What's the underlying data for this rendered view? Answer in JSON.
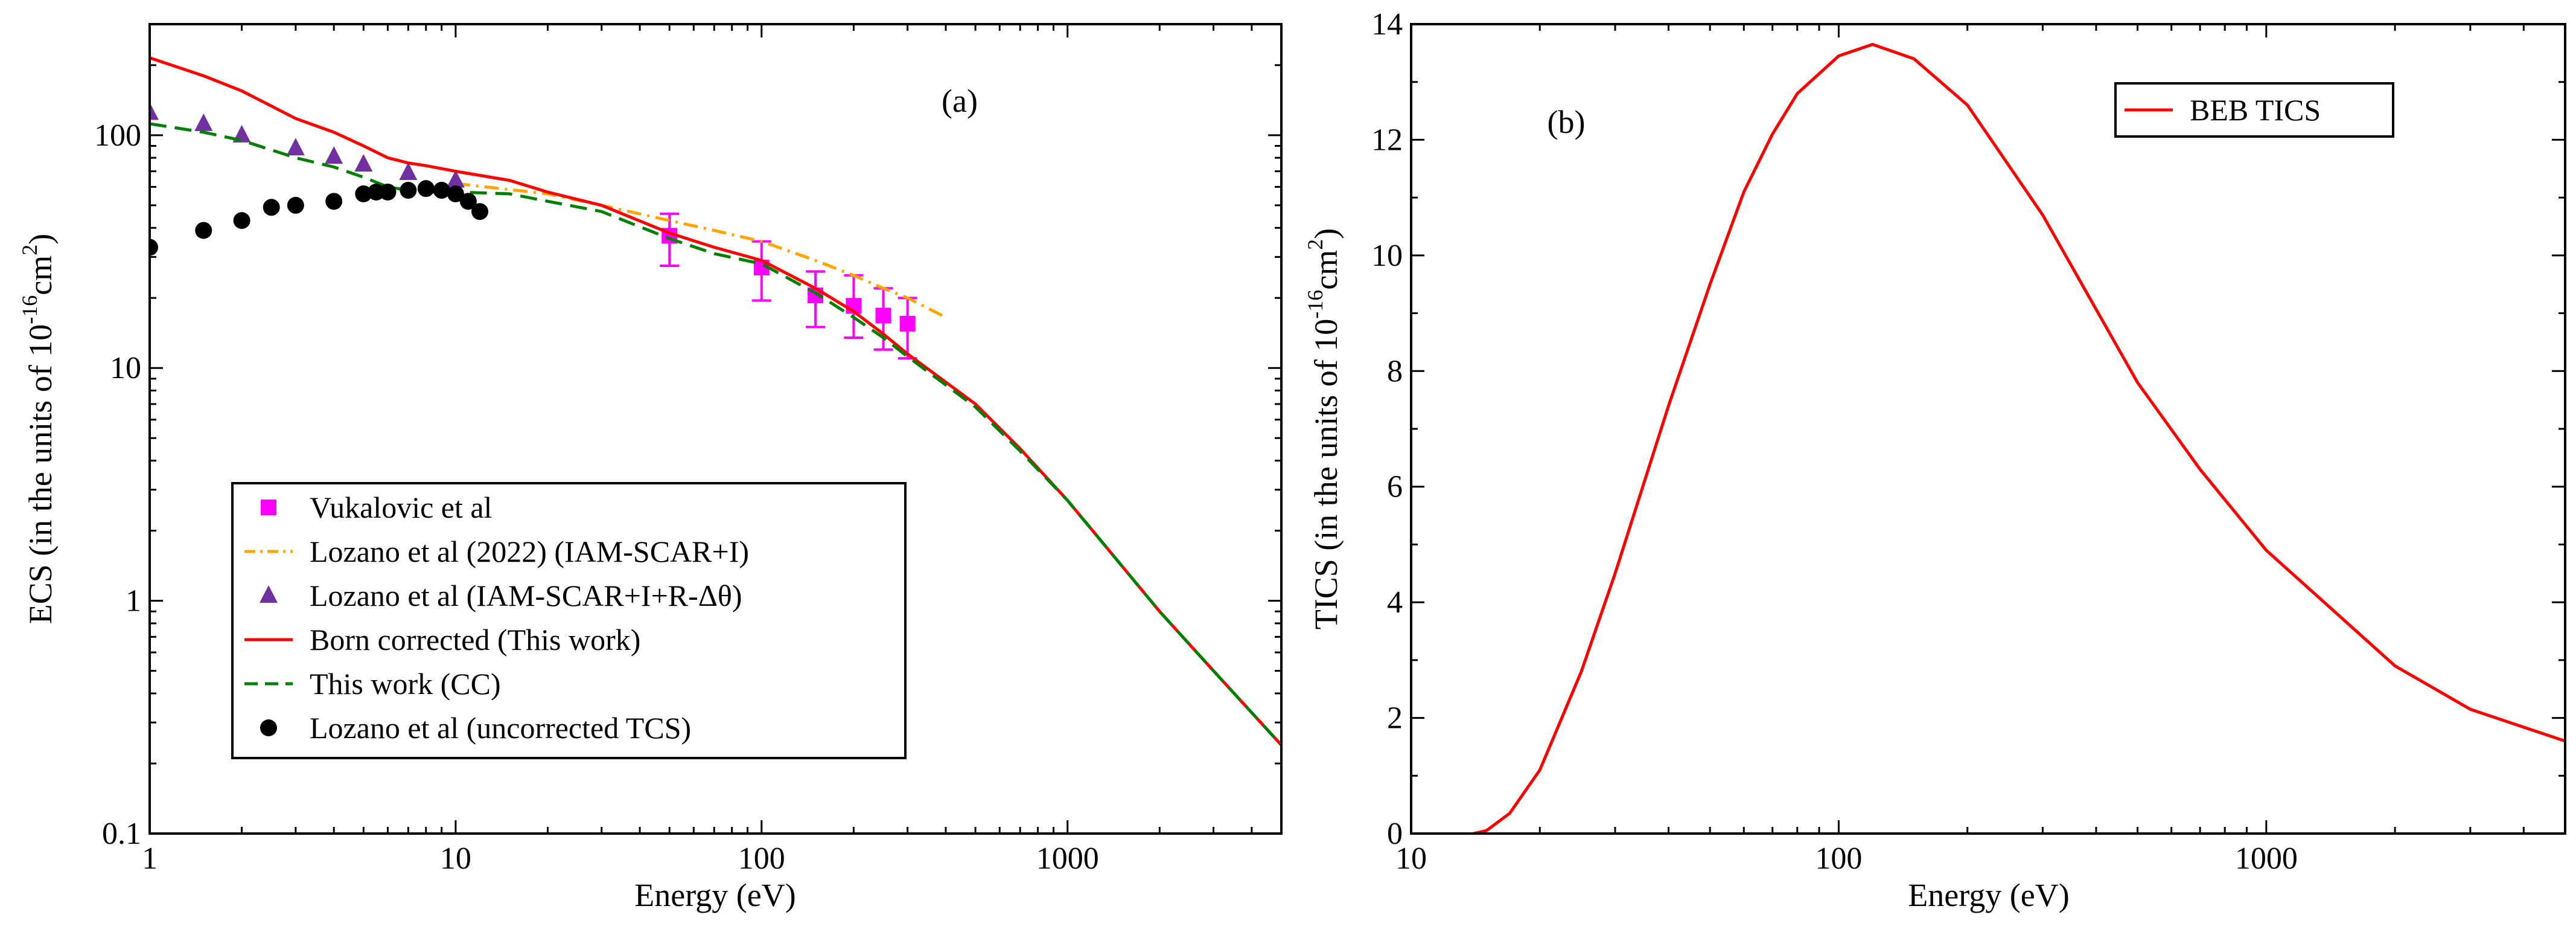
{
  "chart_data": [
    {
      "type": "line",
      "panel_label": "(a)",
      "xscale": "log",
      "yscale": "log",
      "xlabel": "Energy (eV)",
      "ylabel": "ECS (in the units of 10",
      "ylabel_exp": "-16",
      "ylabel_unit": "cm",
      "ylabel_unit_exp": "2",
      "ylabel_close": ")",
      "xlim": [
        1,
        5000
      ],
      "ylim": [
        0.1,
        300
      ],
      "xticks": [
        1,
        10,
        100,
        1000
      ],
      "xtick_labels": [
        "1",
        "10",
        "100",
        "1000"
      ],
      "yticks": [
        0.1,
        1,
        10,
        100
      ],
      "ytick_labels": [
        "0.1",
        "1",
        "10",
        "100"
      ],
      "legend_position": "lower-left",
      "series": [
        {
          "name": "Vukalovic et al",
          "style": "markers-square",
          "color": "#ff00ff",
          "x": [
            50,
            100,
            150,
            200,
            250,
            300
          ],
          "y": [
            37,
            27,
            20.5,
            18.5,
            16.8,
            15.5
          ],
          "err_low": [
            27.5,
            19.5,
            15,
            13.5,
            12,
            11
          ],
          "err_high": [
            46,
            35,
            26,
            25,
            22,
            20
          ]
        },
        {
          "name": "Lozano et al  (2022) (IAM-SCAR+I)",
          "style": "dash-dot",
          "color": "#ffa500",
          "x": [
            10,
            20,
            30,
            50,
            70,
            100,
            150,
            200,
            250,
            300,
            400
          ],
          "y": [
            62,
            56,
            50,
            43,
            39,
            35,
            29,
            25,
            22,
            20,
            16.5
          ]
        },
        {
          "name": "Lozano et al (IAM-SCAR+I+R-Δθ)",
          "style": "markers-triangle",
          "color": "#7030a0",
          "x": [
            1,
            1.5,
            2,
            3,
            4,
            5,
            7,
            10
          ],
          "y": [
            125,
            112,
            100,
            88,
            81,
            75,
            69,
            64
          ]
        },
        {
          "name": "Born corrected (This work)",
          "style": "solid",
          "color": "#ff0000",
          "x": [
            1,
            1.5,
            2,
            3,
            4,
            5,
            6,
            7,
            8,
            10,
            15,
            20,
            30,
            50,
            70,
            100,
            150,
            200,
            250,
            300,
            500,
            700,
            1000,
            2000,
            3000,
            5000
          ],
          "y": [
            215,
            180,
            155,
            118,
            103,
            90,
            80,
            76,
            74,
            70,
            64,
            57,
            50,
            38,
            33,
            29,
            22,
            17.5,
            14,
            11.5,
            7,
            4.5,
            2.7,
            0.9,
            0.5,
            0.24
          ]
        },
        {
          "name": "This work (CC)",
          "style": "dashed",
          "color": "#008000",
          "x": [
            1,
            1.5,
            2,
            3,
            4,
            5,
            6,
            7,
            8,
            10,
            15,
            20,
            30,
            50,
            70,
            100,
            150,
            200,
            250,
            300,
            500,
            700,
            1000,
            2000,
            3000,
            5000
          ],
          "y": [
            112,
            103,
            95,
            80,
            73,
            66,
            60,
            58,
            57,
            57,
            56,
            52,
            47,
            36,
            31,
            28,
            21,
            16.5,
            13.5,
            11.2,
            6.8,
            4.4,
            2.7,
            0.9,
            0.5,
            0.24
          ]
        },
        {
          "name": "Lozano et al (uncorrected TCS)",
          "style": "markers-circle",
          "color": "#000000",
          "x": [
            1,
            1.5,
            2,
            2.5,
            3,
            4,
            5,
            5.5,
            6,
            7,
            8,
            9,
            10,
            11,
            12
          ],
          "y": [
            33,
            39,
            43,
            49,
            50,
            52,
            56,
            57,
            57,
            58,
            59,
            58,
            56,
            52,
            47
          ]
        }
      ]
    },
    {
      "type": "line",
      "panel_label": "(b)",
      "xscale": "log",
      "yscale": "linear",
      "xlabel": "Energy (eV)",
      "ylabel": "TICS (in the units of 10",
      "ylabel_exp": "-16",
      "ylabel_unit": "cm",
      "ylabel_unit_exp": "2",
      "ylabel_close": ")",
      "xlim": [
        10,
        5000
      ],
      "ylim": [
        0,
        14
      ],
      "xticks": [
        10,
        100,
        1000
      ],
      "xtick_labels": [
        "10",
        "100",
        "1000"
      ],
      "yticks": [
        0,
        2,
        4,
        6,
        8,
        10,
        12,
        14
      ],
      "ytick_labels": [
        "0",
        "2",
        "4",
        "6",
        "8",
        "10",
        "12",
        "14"
      ],
      "legend_position": "top-right",
      "series": [
        {
          "name": "BEB TICS",
          "style": "solid",
          "color": "#ff0000",
          "x": [
            14,
            15,
            17,
            20,
            25,
            30,
            40,
            50,
            60,
            70,
            80,
            100,
            120,
            150,
            200,
            300,
            500,
            700,
            1000,
            2000,
            3000,
            5000
          ],
          "y": [
            0,
            0.05,
            0.35,
            1.1,
            2.8,
            4.5,
            7.4,
            9.5,
            11.1,
            12.1,
            12.8,
            13.45,
            13.65,
            13.4,
            12.6,
            10.7,
            7.8,
            6.3,
            4.9,
            2.9,
            2.15,
            1.6
          ]
        }
      ]
    }
  ]
}
